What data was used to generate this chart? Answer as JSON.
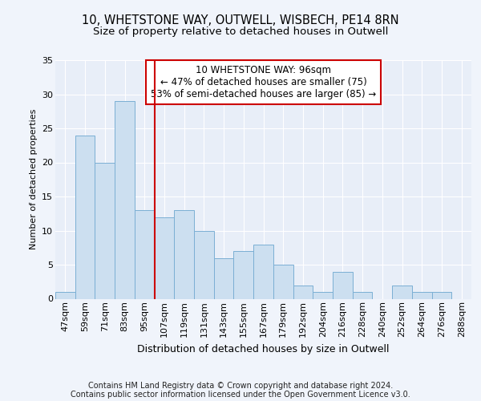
{
  "title1": "10, WHETSTONE WAY, OUTWELL, WISBECH, PE14 8RN",
  "title2": "Size of property relative to detached houses in Outwell",
  "xlabel": "Distribution of detached houses by size in Outwell",
  "ylabel": "Number of detached properties",
  "categories": [
    "47sqm",
    "59sqm",
    "71sqm",
    "83sqm",
    "95sqm",
    "107sqm",
    "119sqm",
    "131sqm",
    "143sqm",
    "155sqm",
    "167sqm",
    "179sqm",
    "192sqm",
    "204sqm",
    "216sqm",
    "228sqm",
    "240sqm",
    "252sqm",
    "264sqm",
    "276sqm",
    "288sqm"
  ],
  "values": [
    1,
    24,
    20,
    29,
    13,
    12,
    13,
    10,
    6,
    7,
    8,
    5,
    2,
    1,
    4,
    1,
    0,
    2,
    1,
    1,
    0
  ],
  "bar_color": "#ccdff0",
  "bar_edge_color": "#7bafd4",
  "highlight_line_color": "#cc0000",
  "highlight_line_index": 4,
  "annotation_text": "10 WHETSTONE WAY: 96sqm\n← 47% of detached houses are smaller (75)\n53% of semi-detached houses are larger (85) →",
  "annotation_box_color": "#ffffff",
  "annotation_box_edge_color": "#cc0000",
  "ylim": [
    0,
    35
  ],
  "yticks": [
    0,
    5,
    10,
    15,
    20,
    25,
    30,
    35
  ],
  "footer1": "Contains HM Land Registry data © Crown copyright and database right 2024.",
  "footer2": "Contains public sector information licensed under the Open Government Licence v3.0.",
  "bg_color": "#f0f4fb",
  "plot_bg_color": "#e8eef8",
  "title_fontsize": 10.5,
  "subtitle_fontsize": 9.5,
  "tick_fontsize": 8,
  "ylabel_fontsize": 8,
  "xlabel_fontsize": 9,
  "footer_fontsize": 7,
  "annot_fontsize": 8.5
}
